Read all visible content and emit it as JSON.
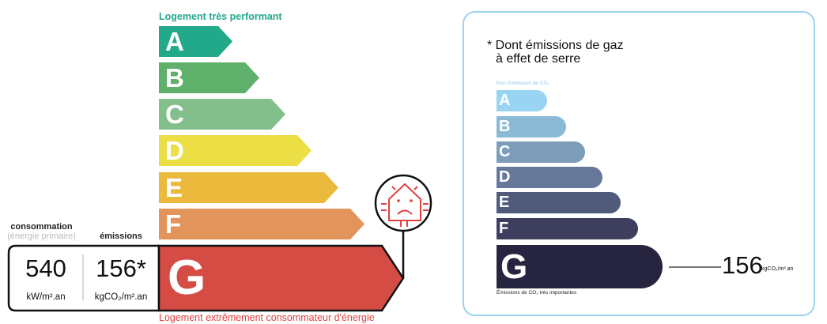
{
  "energy": {
    "top_label": "Logement très performant",
    "bottom_label": "Logement extrêmement consommateur d'énergie",
    "classes": [
      {
        "letter": "A",
        "color": "#22a98a"
      },
      {
        "letter": "B",
        "color": "#5fb06a"
      },
      {
        "letter": "C",
        "color": "#82bf8b"
      },
      {
        "letter": "D",
        "color": "#ecde45"
      },
      {
        "letter": "E",
        "color": "#ebb93b"
      },
      {
        "letter": "F",
        "color": "#e2945a"
      },
      {
        "letter": "G",
        "color": "#d54c45"
      }
    ],
    "current_class": "G",
    "consumption_label": "consommation",
    "consumption_sub": "(énergie primaire)",
    "emissions_label": "émissions",
    "consumption_value": "540",
    "consumption_unit": "kW/m².an",
    "emissions_value": "156*",
    "emissions_unit": "kgCO₂/m².an",
    "icon": "sad-house-icon"
  },
  "ges": {
    "title_line1": "* Dont émissions de gaz",
    "title_line2": "à effet de serre",
    "top_label": "Peu d'émission de CO₂",
    "bottom_label": "Émissions de CO₂ très importantes",
    "classes": [
      {
        "letter": "A",
        "color": "#99d5f3"
      },
      {
        "letter": "B",
        "color": "#8bbad6"
      },
      {
        "letter": "C",
        "color": "#7d9cb9"
      },
      {
        "letter": "D",
        "color": "#66789a"
      },
      {
        "letter": "E",
        "color": "#505b7c"
      },
      {
        "letter": "F",
        "color": "#3e3e5e"
      },
      {
        "letter": "G",
        "color": "#27243f"
      }
    ],
    "current_class": "G",
    "value": "156",
    "unit": "kgCO₂/m².an",
    "border_color": "#9dd3ef"
  }
}
